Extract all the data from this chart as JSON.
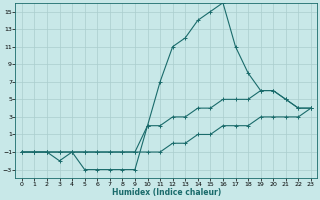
{
  "xlabel": "Humidex (Indice chaleur)",
  "bg_color": "#c8e8e8",
  "grid_color": "#aacece",
  "line_color": "#1a6b6b",
  "xlim": [
    -0.5,
    23.5
  ],
  "ylim": [
    -4,
    16
  ],
  "xticks": [
    0,
    1,
    2,
    3,
    4,
    5,
    6,
    7,
    8,
    9,
    10,
    11,
    12,
    13,
    14,
    15,
    16,
    17,
    18,
    19,
    20,
    21,
    22,
    23
  ],
  "yticks": [
    -3,
    -1,
    1,
    3,
    5,
    7,
    9,
    11,
    13,
    15
  ],
  "line_peak_x": [
    0,
    1,
    2,
    3,
    4,
    5,
    6,
    7,
    8,
    9,
    10,
    11,
    12,
    13,
    14,
    15,
    16,
    17,
    18,
    19,
    20,
    21,
    22,
    23
  ],
  "line_peak_y": [
    -1,
    -1,
    -1,
    -2,
    -1,
    -3,
    -3,
    -3,
    -3,
    -3,
    2,
    7,
    11,
    12,
    14,
    15,
    16,
    11,
    8,
    6,
    6,
    5,
    4,
    4
  ],
  "line_mid_x": [
    0,
    1,
    2,
    3,
    4,
    5,
    6,
    7,
    8,
    9,
    10,
    11,
    12,
    13,
    14,
    15,
    16,
    17,
    18,
    19,
    20,
    21,
    22,
    23
  ],
  "line_mid_y": [
    -1,
    -1,
    -1,
    -1,
    -1,
    -1,
    -1,
    -1,
    -1,
    -1,
    2,
    2,
    3,
    3,
    4,
    4,
    5,
    5,
    5,
    6,
    6,
    5,
    4,
    4
  ],
  "line_low_x": [
    0,
    1,
    2,
    3,
    4,
    5,
    6,
    7,
    8,
    9,
    10,
    11,
    12,
    13,
    14,
    15,
    16,
    17,
    18,
    19,
    20,
    21,
    22,
    23
  ],
  "line_low_y": [
    -1,
    -1,
    -1,
    -1,
    -1,
    -1,
    -1,
    -1,
    -1,
    -1,
    -1,
    -1,
    0,
    0,
    1,
    1,
    2,
    2,
    2,
    3,
    3,
    3,
    3,
    4
  ]
}
